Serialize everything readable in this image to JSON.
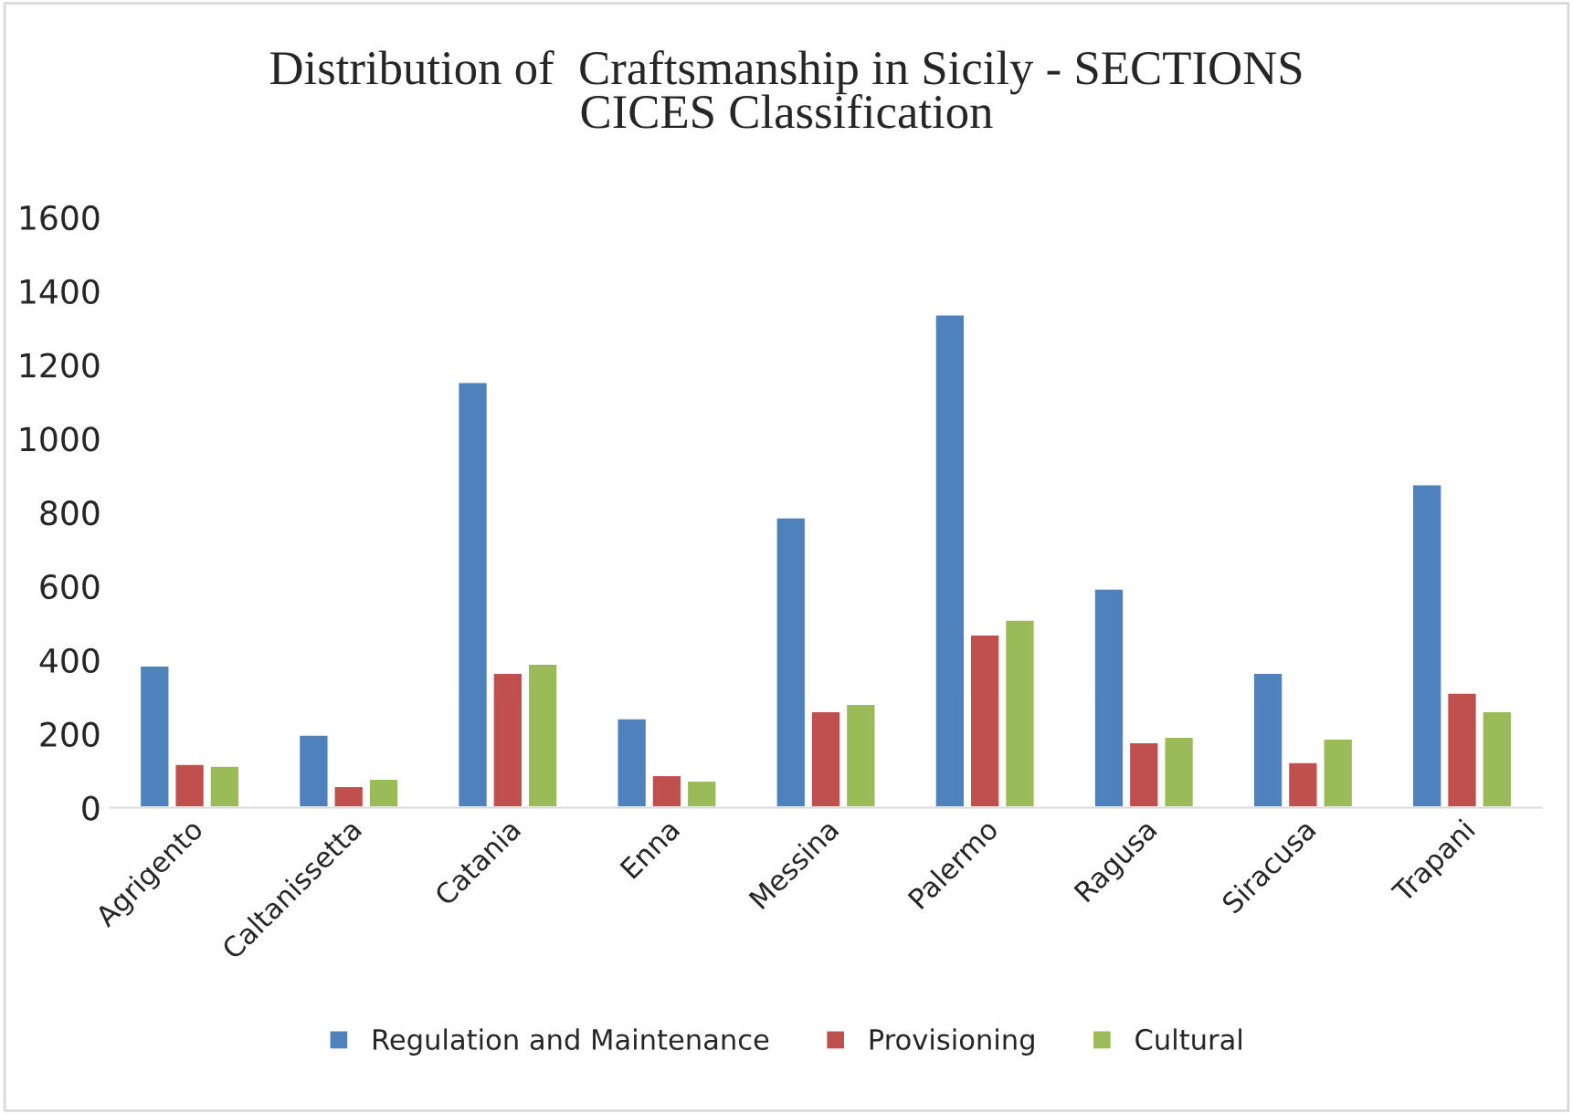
{
  "chart_data": {
    "type": "bar",
    "title": "Distribution of  Craftsmanship in Sicily - SECTIONS\nCICES Classification",
    "categories": [
      "Agrigento",
      "Caltanissetta",
      "Catania",
      "Enna",
      "Messina",
      "Palermo",
      "Ragusa",
      "Siracusa",
      "Trapani"
    ],
    "series": [
      {
        "name": "Regulation and Maintenance",
        "color": "#4f81bd",
        "values": [
          386,
          198,
          1154,
          243,
          787,
          1337,
          594,
          366,
          877
        ]
      },
      {
        "name": "Provisioning",
        "color": "#c0504d",
        "values": [
          119,
          59,
          366,
          89,
          262,
          470,
          178,
          124,
          312
        ]
      },
      {
        "name": "Cultural",
        "color": "#9bbb59",
        "values": [
          114,
          79,
          391,
          74,
          282,
          510,
          193,
          188,
          262
        ]
      }
    ],
    "ylim": [
      0,
      1600
    ],
    "yticks": [
      0,
      200,
      400,
      600,
      800,
      1000,
      1200,
      1400,
      1600
    ],
    "grid": false,
    "legend": "bottom"
  }
}
